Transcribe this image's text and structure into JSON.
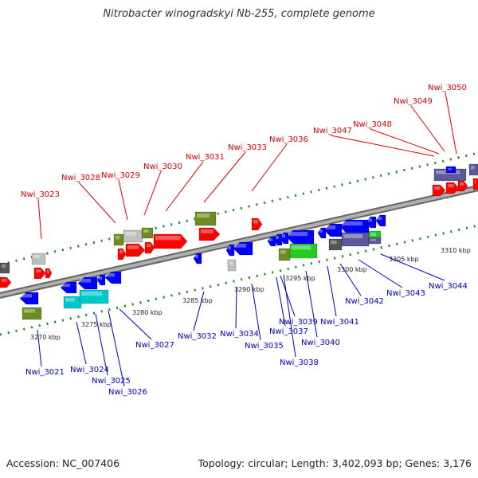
{
  "title": "Nitrobacter winogradskyi Nb-255, complete genome",
  "footer": {
    "accession": "Accession: NC_007406",
    "stats": "Topology: circular; Length: 3,402,093 bp; Genes: 3,176"
  },
  "colors": {
    "forward_label": "#dd0000",
    "reverse_label": "#0000bb",
    "backbone": "#888888",
    "dots": "#228822",
    "gene_red": "#ff0000",
    "gene_blue": "#0000ff",
    "gene_olive": "#6b8e23",
    "gene_gray": "#c0c0c0",
    "gene_darkgray": "#555555",
    "gene_cyan": "#00c8c8",
    "gene_green": "#22cc22",
    "gene_slate": "#5a5a9a"
  },
  "ticks": [
    "3270 kbp",
    "3275 kbp",
    "3280 kbp",
    "3285 kbp",
    "3290 kbp",
    "3295 kbp",
    "3300 kbp",
    "3305 kbp",
    "3310 kbp"
  ],
  "labels_forward": [
    "Nwi_3023",
    "Nwi_3028",
    "Nwi_3029",
    "Nwi_3030",
    "Nwi_3031",
    "Nwi_3033",
    "Nwi_3036",
    "Nwi_3047",
    "Nwi_3048",
    "Nwi_3049",
    "Nwi_3050"
  ],
  "labels_reverse": [
    "Nwi_3021",
    "Nwi_3024",
    "Nwi_3025",
    "Nwi_3026",
    "Nwi_3027",
    "Nwi_3032",
    "Nwi_3034",
    "Nwi_3035",
    "Nwi_3037",
    "Nwi_3038",
    "Nwi_3039",
    "Nwi_3040",
    "Nwi_3041",
    "Nwi_3042",
    "Nwi_3043",
    "Nwi_3044"
  ]
}
